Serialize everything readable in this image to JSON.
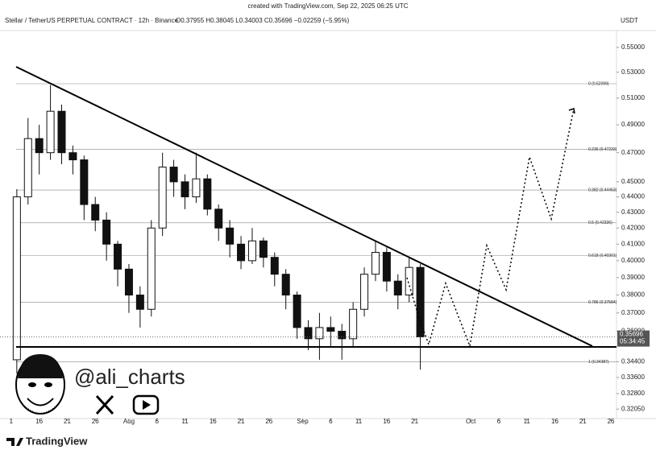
{
  "header": {
    "watermark": "created with TradingView.com, Sep 22, 2025 06:25 UTC",
    "symbol": "Stellar / TetherUS PERPETUAL CONTRACT · 12h · Binance",
    "ohlc": "O0.37955 H0.38045 L0.34003 C0.35696 −0.02259 (−5.95%)",
    "currency": "USDT"
  },
  "chart_data": {
    "type": "candlestick",
    "log_scale": true,
    "grid": false,
    "up_color": "#ffffff",
    "down_color": "#111111",
    "x": [
      "Jul 12",
      "Jul 14",
      "Jul 16",
      "Jul 18",
      "Jul 20",
      "Jul 22",
      "Jul 24",
      "Jul 26",
      "Jul 28",
      "Jul 30",
      "Aug 1",
      "Aug 3",
      "Aug 5",
      "Aug 7",
      "Aug 9",
      "Aug 11",
      "Aug 13",
      "Aug 15",
      "Aug 17",
      "Aug 19",
      "Aug 21",
      "Aug 23",
      "Aug 25",
      "Aug 27",
      "Aug 29",
      "Aug 31",
      "Sep 2",
      "Sep 4",
      "Sep 6",
      "Sep 8",
      "Sep 10",
      "Sep 12",
      "Sep 14",
      "Sep 16",
      "Sep 18",
      "Sep 20",
      "Sep 22"
    ],
    "open": [
      0.345,
      0.44,
      0.48,
      0.47,
      0.5,
      0.47,
      0.465,
      0.435,
      0.425,
      0.41,
      0.395,
      0.38,
      0.372,
      0.42,
      0.46,
      0.45,
      0.44,
      0.452,
      0.432,
      0.42,
      0.41,
      0.4,
      0.412,
      0.402,
      0.392,
      0.38,
      0.362,
      0.356,
      0.362,
      0.36,
      0.356,
      0.372,
      0.392,
      0.405,
      0.388,
      0.38,
      0.396
    ],
    "high": [
      0.445,
      0.495,
      0.49,
      0.52,
      0.505,
      0.475,
      0.468,
      0.44,
      0.43,
      0.412,
      0.398,
      0.385,
      0.425,
      0.47,
      0.465,
      0.455,
      0.47,
      0.455,
      0.435,
      0.425,
      0.415,
      0.42,
      0.414,
      0.405,
      0.395,
      0.382,
      0.366,
      0.37,
      0.368,
      0.364,
      0.376,
      0.396,
      0.412,
      0.408,
      0.392,
      0.402,
      0.398
    ],
    "low": [
      0.338,
      0.435,
      0.455,
      0.465,
      0.462,
      0.455,
      0.425,
      0.418,
      0.4,
      0.385,
      0.37,
      0.362,
      0.368,
      0.415,
      0.44,
      0.432,
      0.436,
      0.428,
      0.412,
      0.402,
      0.395,
      0.398,
      0.396,
      0.385,
      0.372,
      0.356,
      0.35,
      0.345,
      0.352,
      0.345,
      0.352,
      0.368,
      0.388,
      0.382,
      0.372,
      0.376,
      0.34
    ],
    "close": [
      0.44,
      0.48,
      0.47,
      0.5,
      0.47,
      0.465,
      0.435,
      0.425,
      0.41,
      0.395,
      0.38,
      0.372,
      0.42,
      0.46,
      0.45,
      0.44,
      0.452,
      0.432,
      0.42,
      0.41,
      0.4,
      0.412,
      0.402,
      0.392,
      0.38,
      0.362,
      0.356,
      0.362,
      0.36,
      0.356,
      0.372,
      0.392,
      0.405,
      0.388,
      0.38,
      0.396,
      0.357
    ],
    "xlim": [
      "Jul 9",
      "Oct 27"
    ],
    "xticks": [
      {
        "value": "Jul 11",
        "label": "1"
      },
      {
        "value": "Jul 16",
        "label": "16"
      },
      {
        "value": "Jul 21",
        "label": "21"
      },
      {
        "value": "Jul 26",
        "label": "26"
      },
      {
        "value": "Aug 1",
        "label": "Aug"
      },
      {
        "value": "Aug 6",
        "label": "6"
      },
      {
        "value": "Aug 11",
        "label": "11"
      },
      {
        "value": "Aug 16",
        "label": "16"
      },
      {
        "value": "Aug 21",
        "label": "21"
      },
      {
        "value": "Aug 26",
        "label": "26"
      },
      {
        "value": "Sep 1",
        "label": "Sep"
      },
      {
        "value": "Sep 6",
        "label": "6"
      },
      {
        "value": "Sep 11",
        "label": "11"
      },
      {
        "value": "Sep 16",
        "label": "16"
      },
      {
        "value": "Sep 21",
        "label": "21"
      },
      {
        "value": "Oct 1",
        "label": "Oct"
      },
      {
        "value": "Oct 6",
        "label": "6"
      },
      {
        "value": "Oct 11",
        "label": "11"
      },
      {
        "value": "Oct 16",
        "label": "16"
      },
      {
        "value": "Oct 21",
        "label": "21"
      },
      {
        "value": "Oct 26",
        "label": "26"
      }
    ],
    "ylim": [
      0.316,
      0.564
    ],
    "yticks": [
      {
        "value": 0.55,
        "label": "0.55000"
      },
      {
        "value": 0.53,
        "label": "0.53000"
      },
      {
        "value": 0.51,
        "label": "0.51000"
      },
      {
        "value": 0.49,
        "label": "0.49000"
      },
      {
        "value": 0.47,
        "label": "0.47000"
      },
      {
        "value": 0.45,
        "label": "0.45000"
      },
      {
        "value": 0.44,
        "label": "0.44000"
      },
      {
        "value": 0.43,
        "label": "0.43000"
      },
      {
        "value": 0.42,
        "label": "0.42000"
      },
      {
        "value": 0.41,
        "label": "0.41000"
      },
      {
        "value": 0.4,
        "label": "0.40000"
      },
      {
        "value": 0.39,
        "label": "0.39000"
      },
      {
        "value": 0.38,
        "label": "0.38000"
      },
      {
        "value": 0.37,
        "label": "0.37000"
      },
      {
        "value": 0.36,
        "label": "0.36000"
      },
      {
        "value": 0.344,
        "label": "0.34400"
      },
      {
        "value": 0.336,
        "label": "0.33600"
      },
      {
        "value": 0.328,
        "label": "0.32800"
      },
      {
        "value": 0.3205,
        "label": "0.32050"
      }
    ],
    "fib_levels": [
      {
        "value": 0.52099,
        "label": "0 (0.52099)"
      },
      {
        "value": 0.47233,
        "label": "0.236 (0.47233)"
      },
      {
        "value": 0.44453,
        "label": "0.382 (0.44453)"
      },
      {
        "value": 0.42326,
        "label": "0.5 (0.42326)"
      },
      {
        "value": 0.40301,
        "label": "0.618 (0.40301)"
      },
      {
        "value": 0.37584,
        "label": "0.786 (0.37584)"
      },
      {
        "value": 0.34387,
        "label": "1 (0.34387)"
      }
    ],
    "last_price": {
      "value": 0.35696,
      "label": "0.35696"
    },
    "countdown": "05:34:45"
  },
  "author": "@ali_charts",
  "brand": "TradingView"
}
